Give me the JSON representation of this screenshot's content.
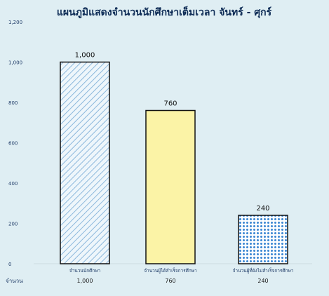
{
  "chart_data": {
    "type": "bar",
    "title": "แผนภูมิแสดงจำนวนนักศึกษาเต็มเวลา จันทร์ - ศุกร์",
    "categories": [
      "จำนวนนักศึกษา",
      "จำนวนผู้ได้สำเร็จการศึกษา",
      "จำนวนผู้ที่ยังไม่สำเร็จการศึกษา"
    ],
    "values": [
      1000,
      760,
      240
    ],
    "value_labels": [
      "1,000",
      "760",
      "240"
    ],
    "yticks": [
      0,
      200,
      400,
      600,
      800,
      1000,
      1200
    ],
    "ytick_labels": [
      "0",
      "200",
      "400",
      "600",
      "800",
      "1,000",
      "1,200"
    ],
    "ylim": [
      0,
      1200
    ],
    "grid": false,
    "legend": "none",
    "table": {
      "row_label": "จำนวน",
      "cells": [
        "1,000",
        "760",
        "240"
      ]
    },
    "colors": {
      "background": "#dfeef3",
      "bar_outline": "#111111",
      "bar1_fill": "#eef6fb",
      "bar1_hatch": "#8cb8dc",
      "bar2_fill": "#fbf3a6",
      "bar3_fill": "#ffffff",
      "bar3_dots": "#3b86d2",
      "axis_text": "#1f3b67"
    },
    "patterns": [
      "diagonal-hatch",
      "solid",
      "dots"
    ]
  }
}
